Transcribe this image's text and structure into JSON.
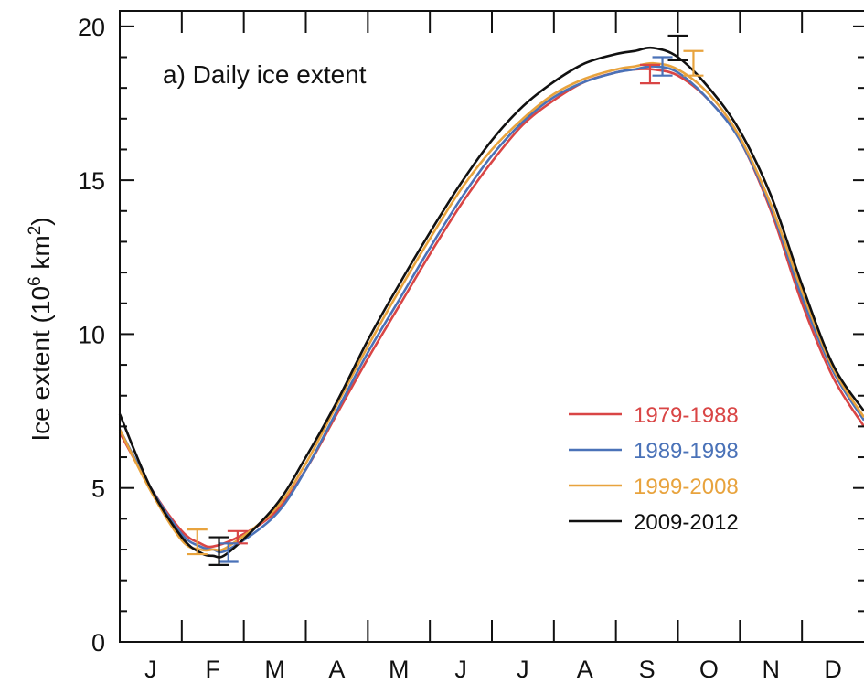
{
  "colors": {
    "series_1": "#d94545",
    "series_2": "#4a72b8",
    "series_3": "#e8a33d",
    "series_4": "#111111",
    "axis": "#111111"
  },
  "chart_data": {
    "type": "line",
    "title": "a) Daily ice extent",
    "ylabel": "Ice extent (10^6 km^2)",
    "ylabel_parts": {
      "main": "Ice extent (10",
      "sup1": "6",
      "mid": " km",
      "sup2": "2",
      "end": ")"
    },
    "xlabel": "",
    "x_tick_labels": [
      "J",
      "F",
      "M",
      "A",
      "M",
      "J",
      "J",
      "A",
      "S",
      "O",
      "N",
      "D"
    ],
    "y_ticks": [
      0,
      5,
      10,
      15,
      20
    ],
    "ylim": [
      0,
      20.5
    ],
    "xlim": [
      0,
      12
    ],
    "legend_position": "right",
    "grid": false,
    "series": [
      {
        "name": "1979-1988",
        "color_key": "series_1",
        "x": [
          0,
          0.5,
          1.0,
          1.3,
          1.5,
          1.9,
          2.5,
          3.0,
          3.5,
          4.0,
          4.5,
          5.0,
          5.5,
          6.0,
          6.5,
          7.0,
          7.5,
          8.0,
          8.3,
          8.6,
          9.0,
          9.5,
          10.0,
          10.5,
          11.0,
          11.5,
          12.0
        ],
        "y": [
          6.8,
          5.0,
          3.6,
          3.2,
          3.1,
          3.4,
          4.2,
          5.6,
          7.4,
          9.2,
          10.9,
          12.6,
          14.2,
          15.6,
          16.8,
          17.6,
          18.2,
          18.5,
          18.6,
          18.6,
          18.4,
          17.6,
          16.3,
          14.0,
          11.0,
          8.6,
          7.0
        ],
        "error_bars": [
          {
            "x": 1.9,
            "y": 3.4,
            "err": 0.2
          },
          {
            "x": 8.55,
            "y": 18.45,
            "err": 0.3
          }
        ]
      },
      {
        "name": "1989-1998",
        "color_key": "series_2",
        "x": [
          0,
          0.5,
          1.0,
          1.3,
          1.5,
          1.75,
          2.5,
          3.0,
          3.5,
          4.0,
          4.5,
          5.0,
          5.5,
          6.0,
          6.5,
          7.0,
          7.5,
          8.0,
          8.3,
          8.6,
          9.0,
          9.5,
          10.0,
          10.5,
          11.0,
          11.5,
          12.0
        ],
        "y": [
          6.9,
          5.0,
          3.5,
          3.1,
          3.0,
          3.0,
          4.1,
          5.6,
          7.5,
          9.4,
          11.1,
          12.8,
          14.4,
          15.8,
          16.9,
          17.7,
          18.2,
          18.5,
          18.6,
          18.7,
          18.5,
          17.6,
          16.3,
          14.1,
          11.2,
          8.8,
          7.2
        ],
        "error_bars": [
          {
            "x": 1.75,
            "y": 2.9,
            "err": 0.3
          },
          {
            "x": 8.75,
            "y": 18.7,
            "err": 0.3
          }
        ]
      },
      {
        "name": "1999-2008",
        "color_key": "series_3",
        "x": [
          0,
          0.5,
          1.0,
          1.3,
          1.5,
          1.75,
          2.5,
          3.0,
          3.5,
          4.0,
          4.5,
          5.0,
          5.5,
          6.0,
          6.5,
          7.0,
          7.5,
          8.0,
          8.3,
          8.6,
          9.0,
          9.5,
          10.0,
          10.5,
          11.0,
          11.5,
          12.0
        ],
        "y": [
          6.9,
          4.9,
          3.3,
          3.0,
          3.0,
          3.1,
          4.3,
          5.8,
          7.7,
          9.6,
          11.4,
          13.1,
          14.7,
          16.0,
          17.0,
          17.8,
          18.3,
          18.6,
          18.7,
          18.8,
          18.6,
          17.8,
          16.4,
          14.2,
          11.4,
          8.9,
          7.3
        ],
        "error_bars": [
          {
            "x": 1.25,
            "y": 3.25,
            "err": 0.4
          },
          {
            "x": 9.25,
            "y": 18.8,
            "err": 0.4
          }
        ]
      },
      {
        "name": "2009-2012",
        "color_key": "series_4",
        "x": [
          0,
          0.5,
          1.0,
          1.3,
          1.5,
          1.75,
          2.5,
          3.0,
          3.5,
          4.0,
          4.5,
          5.0,
          5.5,
          6.0,
          6.5,
          7.0,
          7.5,
          8.0,
          8.3,
          8.6,
          9.0,
          9.5,
          10.0,
          10.5,
          11.0,
          11.5,
          12.0
        ],
        "y": [
          7.4,
          5.0,
          3.4,
          2.9,
          2.8,
          2.9,
          4.4,
          6.0,
          7.8,
          9.8,
          11.6,
          13.3,
          14.9,
          16.3,
          17.4,
          18.2,
          18.8,
          19.1,
          19.2,
          19.3,
          19.0,
          18.0,
          16.6,
          14.5,
          11.6,
          9.0,
          7.5
        ],
        "error_bars": [
          {
            "x": 1.6,
            "y": 2.95,
            "err": 0.45
          },
          {
            "x": 9.0,
            "y": 19.3,
            "err": 0.4
          }
        ]
      }
    ]
  }
}
